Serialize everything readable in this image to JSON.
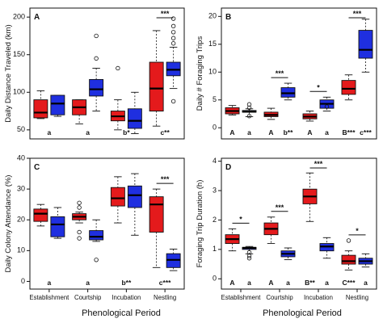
{
  "figure": {
    "xlabel": "Phenological Period",
    "categories": [
      "Establishment",
      "Courtship",
      "Incubation",
      "Nestling"
    ],
    "series_colors": [
      "#e41a1c",
      "#1f2fe0"
    ]
  },
  "chart_data": [
    {
      "type": "boxplot",
      "panel_label": "A",
      "ylabel": "Daily Distance Traveled (km)",
      "ylim": [
        38,
        212
      ],
      "yticks": [
        50,
        100,
        150,
        200
      ],
      "categories": [
        "Establishment",
        "Courtship",
        "Incubation",
        "Nestling"
      ],
      "series": [
        {
          "color": "#e41a1c",
          "boxes": [
            {
              "whisker_low": 65,
              "q1": 66,
              "median": 73,
              "q3": 90,
              "whisker_high": 102,
              "outliers": []
            },
            {
              "whisker_low": 58,
              "q1": 70,
              "median": 80,
              "q3": 90,
              "whisker_high": 90,
              "outliers": []
            },
            {
              "whisker_low": 50,
              "q1": 62,
              "median": 68,
              "q3": 75,
              "whisker_high": 90,
              "outliers": [
                132
              ]
            },
            {
              "whisker_low": 55,
              "q1": 75,
              "median": 105,
              "q3": 140,
              "whisker_high": 182,
              "outliers": []
            }
          ]
        },
        {
          "color": "#1f2fe0",
          "boxes": [
            {
              "whisker_low": 68,
              "q1": 70,
              "median": 85,
              "q3": 96,
              "whisker_high": 96,
              "outliers": []
            },
            {
              "whisker_low": 75,
              "q1": 95,
              "median": 104,
              "q3": 117,
              "whisker_high": 132,
              "outliers": [
                145,
                175
              ]
            },
            {
              "whisker_low": 45,
              "q1": 52,
              "median": 62,
              "q3": 78,
              "whisker_high": 100,
              "outliers": []
            },
            {
              "whisker_low": 105,
              "q1": 122,
              "median": 130,
              "q3": 140,
              "whisker_high": 160,
              "outliers": [
                88,
                165,
                172,
                180,
                188,
                198
              ]
            }
          ]
        }
      ],
      "group_annotations": [
        "a",
        "a",
        "b*",
        "c**"
      ],
      "significance": [
        "",
        "",
        "",
        "***"
      ]
    },
    {
      "type": "boxplot",
      "panel_label": "B",
      "ylabel": "Daily # Foraging Trips",
      "ylim": [
        -2,
        21.5
      ],
      "yticks": [
        0,
        5,
        10,
        15,
        20
      ],
      "categories": [
        "Establishment",
        "Courtship",
        "Incubation",
        "Nestling"
      ],
      "series": [
        {
          "color": "#e41a1c",
          "boxes": [
            {
              "whisker_low": 2.3,
              "q1": 2.5,
              "median": 3,
              "q3": 3.6,
              "whisker_high": 4,
              "outliers": []
            },
            {
              "whisker_low": 1.5,
              "q1": 2,
              "median": 2.3,
              "q3": 2.8,
              "whisker_high": 3.5,
              "outliers": []
            },
            {
              "whisker_low": 1.2,
              "q1": 1.6,
              "median": 2,
              "q3": 2.5,
              "whisker_high": 3,
              "outliers": []
            },
            {
              "whisker_low": 5,
              "q1": 6,
              "median": 7,
              "q3": 8.5,
              "whisker_high": 9.5,
              "outliers": []
            }
          ]
        },
        {
          "color": "#1f2fe0",
          "boxes": [
            {
              "whisker_low": 2,
              "q1": 2.8,
              "median": 2.9,
              "q3": 3.1,
              "whisker_high": 3.4,
              "outliers": [
                2.1,
                3.6,
                4.2
              ]
            },
            {
              "whisker_low": 5,
              "q1": 5.5,
              "median": 6.2,
              "q3": 7.2,
              "whisker_high": 8,
              "outliers": []
            },
            {
              "whisker_low": 3,
              "q1": 3.5,
              "median": 4.3,
              "q3": 5,
              "whisker_high": 5.5,
              "outliers": [
                3.8
              ]
            },
            {
              "whisker_low": 10,
              "q1": 12.5,
              "median": 14,
              "q3": 17.5,
              "whisker_high": 19.5,
              "outliers": []
            }
          ]
        }
      ],
      "group_annotations": [
        "A",
        "a",
        "A",
        "b**",
        "A",
        "a",
        "B***",
        "c***"
      ],
      "significance": [
        "",
        "***",
        "*",
        "***"
      ]
    },
    {
      "type": "boxplot",
      "panel_label": "C",
      "ylabel": "Daily Colony Attendance (%)",
      "ylim": [
        -2.5,
        40
      ],
      "yticks": [
        0,
        10,
        20,
        30,
        40
      ],
      "categories": [
        "Establishment",
        "Courtship",
        "Incubation",
        "Nestling"
      ],
      "series": [
        {
          "color": "#e41a1c",
          "boxes": [
            {
              "whisker_low": 18,
              "q1": 19.5,
              "median": 22,
              "q3": 23.5,
              "whisker_high": 25,
              "outliers": []
            },
            {
              "whisker_low": 19,
              "q1": 20,
              "median": 21,
              "q3": 22,
              "whisker_high": 22.5,
              "outliers": [
                14,
                16,
                24,
                25.5
              ]
            },
            {
              "whisker_low": 19,
              "q1": 24.5,
              "median": 27,
              "q3": 30.5,
              "whisker_high": 34,
              "outliers": []
            },
            {
              "whisker_low": 4.5,
              "q1": 16,
              "median": 25,
              "q3": 27.5,
              "whisker_high": 30,
              "outliers": []
            }
          ]
        },
        {
          "color": "#1f2fe0",
          "boxes": [
            {
              "whisker_low": 14,
              "q1": 14.5,
              "median": 18.5,
              "q3": 21,
              "whisker_high": 24,
              "outliers": []
            },
            {
              "whisker_low": 13,
              "q1": 13.5,
              "median": 14.5,
              "q3": 16.5,
              "whisker_high": 20,
              "outliers": [
                7
              ]
            },
            {
              "whisker_low": 15,
              "q1": 24,
              "median": 28,
              "q3": 31,
              "whisker_high": 35,
              "outliers": []
            },
            {
              "whisker_low": 3.5,
              "q1": 4.5,
              "median": 7,
              "q3": 9,
              "whisker_high": 10.5,
              "outliers": []
            }
          ]
        }
      ],
      "group_annotations": [
        "a",
        "a",
        "b**",
        "c***"
      ],
      "significance": [
        "",
        "",
        "",
        "***"
      ]
    },
    {
      "type": "boxplot",
      "panel_label": "D",
      "ylabel": "Foraging Trip Duration (h)",
      "ylim": [
        -0.35,
        4.1
      ],
      "yticks": [
        0,
        1,
        2,
        3,
        4
      ],
      "categories": [
        "Establishment",
        "Courtship",
        "Incubation",
        "Nestling"
      ],
      "series": [
        {
          "color": "#e41a1c",
          "boxes": [
            {
              "whisker_low": 0.95,
              "q1": 1.2,
              "median": 1.35,
              "q3": 1.5,
              "whisker_high": 1.7,
              "outliers": []
            },
            {
              "whisker_low": 1.2,
              "q1": 1.5,
              "median": 1.7,
              "q3": 1.9,
              "whisker_high": 2.1,
              "outliers": []
            },
            {
              "whisker_low": 1.95,
              "q1": 2.55,
              "median": 2.8,
              "q3": 3.05,
              "whisker_high": 3.6,
              "outliers": []
            },
            {
              "whisker_low": 0.3,
              "q1": 0.5,
              "median": 0.6,
              "q3": 0.8,
              "whisker_high": 0.95,
              "outliers": [
                1.3
              ]
            }
          ]
        },
        {
          "color": "#1f2fe0",
          "boxes": [
            {
              "whisker_low": 0.85,
              "q1": 1.0,
              "median": 1.05,
              "q3": 1.07,
              "whisker_high": 1.1,
              "outliers": [
                0.7,
                0.78,
                0.9
              ]
            },
            {
              "whisker_low": 0.65,
              "q1": 0.75,
              "median": 0.85,
              "q3": 0.95,
              "whisker_high": 1.05,
              "outliers": []
            },
            {
              "whisker_low": 0.7,
              "q1": 0.95,
              "median": 1.1,
              "q3": 1.2,
              "whisker_high": 1.4,
              "outliers": []
            },
            {
              "whisker_low": 0.4,
              "q1": 0.5,
              "median": 0.6,
              "q3": 0.7,
              "whisker_high": 0.85,
              "outliers": []
            }
          ]
        }
      ],
      "group_annotations": [
        "A",
        "a",
        "A",
        "a",
        "B**",
        "a",
        "C***",
        "a"
      ],
      "significance": [
        "*",
        "***",
        "***",
        "*"
      ]
    }
  ]
}
